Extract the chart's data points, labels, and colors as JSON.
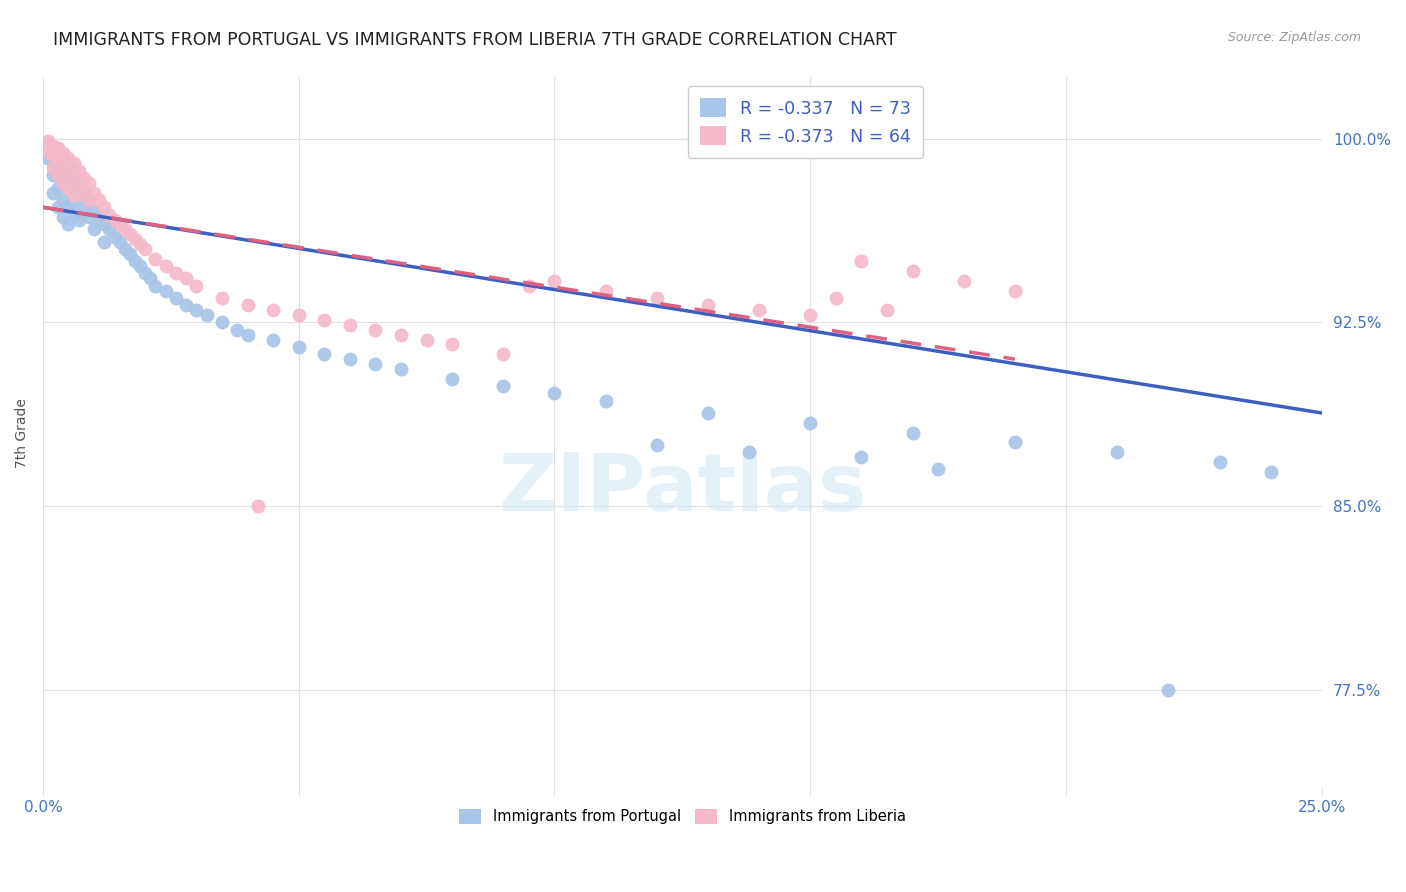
{
  "title": "IMMIGRANTS FROM PORTUGAL VS IMMIGRANTS FROM LIBERIA 7TH GRADE CORRELATION CHART",
  "source": "Source: ZipAtlas.com",
  "ylabel": "7th Grade",
  "ytick_labels": [
    "100.0%",
    "92.5%",
    "85.0%",
    "77.5%"
  ],
  "ytick_values": [
    1.0,
    0.925,
    0.85,
    0.775
  ],
  "xlim": [
    0.0,
    0.25
  ],
  "ylim": [
    0.735,
    1.025
  ],
  "portugal_color": "#a8c4e8",
  "liberia_color": "#f5b8c8",
  "portugal_line_color": "#3f5fc0",
  "liberia_line_color": "#e06080",
  "background_color": "#ffffff",
  "grid_color": "#e0e0e0",
  "watermark_text": "ZIPatlas",
  "title_color": "#222222",
  "ytick_color": "#4472c4",
  "xtick_color": "#4472c4",
  "title_fontsize": 12.5,
  "legend_label_blue": "R = -0.337   N = 73",
  "legend_label_pink": "R = -0.373   N = 64",
  "bottom_legend_portugal": "Immigrants from Portugal",
  "bottom_legend_liberia": "Immigrants from Liberia",
  "portugal_trend": [
    0.0,
    0.25,
    0.972,
    0.888
  ],
  "liberia_trend": [
    0.0,
    0.19,
    0.972,
    0.91
  ],
  "portugal_scatter_x": [
    0.001,
    0.001,
    0.002,
    0.002,
    0.002,
    0.002,
    0.003,
    0.003,
    0.003,
    0.003,
    0.004,
    0.004,
    0.004,
    0.004,
    0.005,
    0.005,
    0.005,
    0.005,
    0.006,
    0.006,
    0.006,
    0.007,
    0.007,
    0.007,
    0.008,
    0.008,
    0.009,
    0.009,
    0.01,
    0.01,
    0.011,
    0.012,
    0.012,
    0.013,
    0.014,
    0.015,
    0.016,
    0.017,
    0.018,
    0.019,
    0.02,
    0.021,
    0.022,
    0.024,
    0.026,
    0.028,
    0.03,
    0.032,
    0.035,
    0.038,
    0.04,
    0.045,
    0.05,
    0.055,
    0.06,
    0.065,
    0.07,
    0.08,
    0.09,
    0.1,
    0.11,
    0.13,
    0.15,
    0.17,
    0.19,
    0.21,
    0.23,
    0.24,
    0.138,
    0.16,
    0.12,
    0.175,
    0.22
  ],
  "portugal_scatter_y": [
    0.998,
    0.992,
    0.996,
    0.99,
    0.985,
    0.978,
    0.995,
    0.988,
    0.98,
    0.972,
    0.993,
    0.985,
    0.975,
    0.968,
    0.99,
    0.982,
    0.972,
    0.965,
    0.988,
    0.979,
    0.97,
    0.983,
    0.975,
    0.967,
    0.978,
    0.97,
    0.975,
    0.968,
    0.97,
    0.963,
    0.968,
    0.965,
    0.958,
    0.963,
    0.96,
    0.958,
    0.955,
    0.953,
    0.95,
    0.948,
    0.945,
    0.943,
    0.94,
    0.938,
    0.935,
    0.932,
    0.93,
    0.928,
    0.925,
    0.922,
    0.92,
    0.918,
    0.915,
    0.912,
    0.91,
    0.908,
    0.906,
    0.902,
    0.899,
    0.896,
    0.893,
    0.888,
    0.884,
    0.88,
    0.876,
    0.872,
    0.868,
    0.864,
    0.872,
    0.87,
    0.875,
    0.865,
    0.775
  ],
  "liberia_scatter_x": [
    0.001,
    0.001,
    0.002,
    0.002,
    0.002,
    0.003,
    0.003,
    0.003,
    0.004,
    0.004,
    0.004,
    0.005,
    0.005,
    0.005,
    0.006,
    0.006,
    0.006,
    0.007,
    0.007,
    0.008,
    0.008,
    0.009,
    0.009,
    0.01,
    0.011,
    0.012,
    0.013,
    0.014,
    0.015,
    0.016,
    0.017,
    0.018,
    0.019,
    0.02,
    0.022,
    0.024,
    0.026,
    0.028,
    0.03,
    0.035,
    0.04,
    0.045,
    0.05,
    0.055,
    0.06,
    0.065,
    0.07,
    0.075,
    0.08,
    0.09,
    0.1,
    0.11,
    0.12,
    0.13,
    0.14,
    0.15,
    0.16,
    0.17,
    0.18,
    0.19,
    0.042,
    0.095,
    0.155,
    0.165
  ],
  "liberia_scatter_y": [
    0.999,
    0.995,
    0.997,
    0.993,
    0.988,
    0.996,
    0.992,
    0.985,
    0.994,
    0.989,
    0.982,
    0.992,
    0.987,
    0.98,
    0.99,
    0.984,
    0.977,
    0.987,
    0.98,
    0.984,
    0.977,
    0.982,
    0.975,
    0.978,
    0.975,
    0.972,
    0.969,
    0.967,
    0.965,
    0.963,
    0.961,
    0.959,
    0.957,
    0.955,
    0.951,
    0.948,
    0.945,
    0.943,
    0.94,
    0.935,
    0.932,
    0.93,
    0.928,
    0.926,
    0.924,
    0.922,
    0.92,
    0.918,
    0.916,
    0.912,
    0.942,
    0.938,
    0.935,
    0.932,
    0.93,
    0.928,
    0.95,
    0.946,
    0.942,
    0.938,
    0.85,
    0.94,
    0.935,
    0.93
  ]
}
